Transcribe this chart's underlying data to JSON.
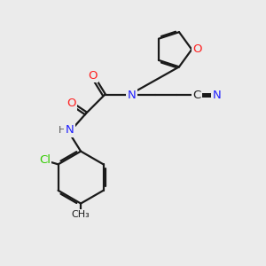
{
  "bg_color": "#ebebeb",
  "bond_color": "#1a1a1a",
  "N_color": "#2020ff",
  "O_color": "#ff2020",
  "Cl_color": "#33cc00",
  "C_color": "#1a1a1a",
  "H_color": "#555555",
  "bond_width": 1.6,
  "font_size": 9.5,
  "figsize": [
    3.0,
    3.0
  ],
  "dpi": 100,
  "xlim": [
    0,
    10
  ],
  "ylim": [
    0,
    10
  ]
}
